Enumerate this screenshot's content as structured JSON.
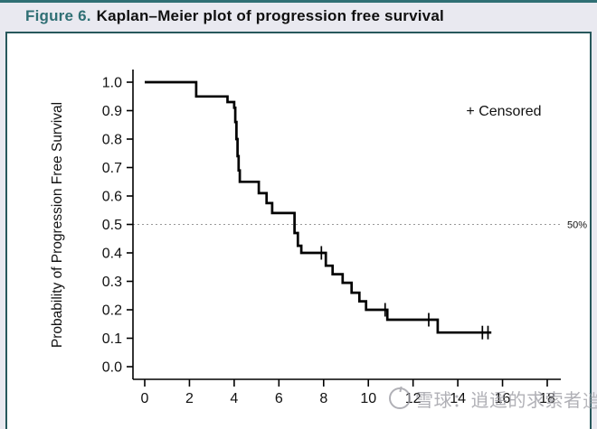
{
  "page": {
    "title_prefix": "Figure 6.",
    "title_rest": "Kaplan–Meier plot of progression free survival"
  },
  "colors": {
    "accent_teal": "#2f6f74",
    "box_border": "#27585c",
    "page_bg": "#e9e9f0",
    "plot_bg": "#ffffff",
    "curve": "#000000",
    "reference_line_gray": "#9a9a9a",
    "watermark_gray": "#9b9ba2"
  },
  "watermark": {
    "logo": "snowball-circle-icon",
    "text": "雪球：逍遥的求索者",
    "partial_text": "逍"
  },
  "chart_data": {
    "type": "line",
    "subtype": "kaplan-meier-step",
    "title": "Kaplan–Meier plot of progression free survival",
    "xlabel": "",
    "ylabel": "Probability of Progression Free Survival",
    "xlim": [
      0,
      18
    ],
    "ylim": [
      0.0,
      1.0
    ],
    "x_ticks": [
      0,
      2,
      4,
      6,
      8,
      10,
      12,
      14,
      16,
      18
    ],
    "y_ticks": [
      0.0,
      0.1,
      0.2,
      0.3,
      0.4,
      0.5,
      0.6,
      0.7,
      0.8,
      0.9,
      1.0
    ],
    "grid": false,
    "legend": {
      "label": "+ Censored",
      "position": "top-right"
    },
    "reference_line": {
      "y": 0.5,
      "label": "50%",
      "style": "dotted"
    },
    "series": [
      {
        "name": "Progression Free Survival",
        "end_time": 15.5,
        "step_points": [
          [
            0,
            1.0
          ],
          [
            2.3,
            0.95
          ],
          [
            3.7,
            0.93
          ],
          [
            4.0,
            0.91
          ],
          [
            4.05,
            0.86
          ],
          [
            4.1,
            0.8
          ],
          [
            4.15,
            0.74
          ],
          [
            4.2,
            0.69
          ],
          [
            4.25,
            0.65
          ],
          [
            5.1,
            0.61
          ],
          [
            5.45,
            0.575
          ],
          [
            5.7,
            0.54
          ],
          [
            6.7,
            0.47
          ],
          [
            6.85,
            0.425
          ],
          [
            7.0,
            0.4
          ],
          [
            8.1,
            0.355
          ],
          [
            8.4,
            0.325
          ],
          [
            8.85,
            0.295
          ],
          [
            9.25,
            0.26
          ],
          [
            9.6,
            0.23
          ],
          [
            9.9,
            0.2
          ],
          [
            10.85,
            0.165
          ],
          [
            13.1,
            0.12
          ]
        ],
        "censored_marks": [
          [
            7.9,
            0.4
          ],
          [
            10.75,
            0.2
          ],
          [
            12.7,
            0.165
          ],
          [
            15.1,
            0.12
          ],
          [
            15.35,
            0.12
          ]
        ]
      }
    ]
  }
}
